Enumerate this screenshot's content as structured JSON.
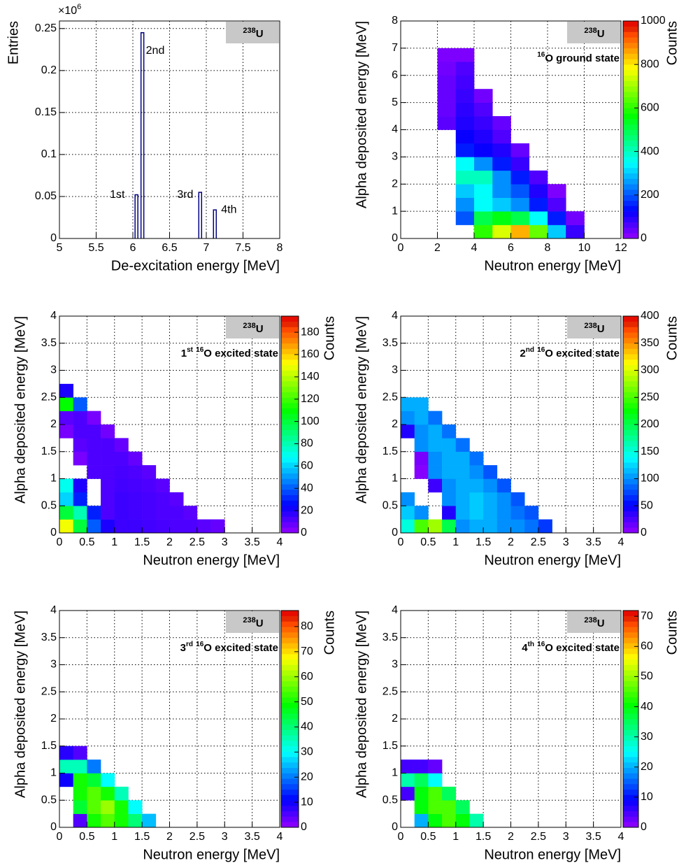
{
  "chart_data": [
    {
      "type": "spike",
      "x": [
        6.049,
        6.13,
        6.917,
        7.117
      ],
      "values": [
        0.052,
        0.245,
        0.055,
        0.034
      ],
      "annotations": [
        "1st",
        "2nd",
        "3rd",
        "4th"
      ],
      "color": "#000080",
      "xlim": [
        5,
        8
      ],
      "xticks": [
        5,
        5.5,
        6,
        6.5,
        7,
        7.5,
        8
      ],
      "ylim": [
        0,
        0.259
      ],
      "yticks": [
        0,
        0.05,
        0.1,
        0.15,
        0.2,
        0.25
      ],
      "y_multiplier": {
        "base": "×10",
        "exponent": "6"
      },
      "xlabel": "De-excitation energy [MeV]",
      "ylabel": "Entries",
      "tag": {
        "sup": "238",
        "text": "U"
      },
      "grid": true
    },
    {
      "type": "heatmap",
      "colormap": "rainbow",
      "grid": true,
      "xbins": [
        0,
        1,
        2,
        3,
        4,
        5,
        6,
        7,
        8,
        9,
        10,
        11,
        12
      ],
      "ybins": [
        0,
        0.5,
        1,
        1.5,
        2,
        2.5,
        3,
        3.5,
        4,
        4.5,
        5,
        5.5,
        6,
        6.5,
        7,
        7.5,
        8
      ],
      "z": [
        [
          0,
          0,
          0,
          0,
          600,
          750,
          850,
          650,
          300,
          80,
          0,
          0
        ],
        [
          0,
          0,
          0,
          200,
          500,
          550,
          500,
          350,
          150,
          30,
          0,
          0
        ],
        [
          0,
          0,
          0,
          250,
          350,
          300,
          250,
          150,
          60,
          0,
          0,
          0
        ],
        [
          0,
          0,
          0,
          300,
          350,
          250,
          200,
          100,
          20,
          0,
          0,
          0
        ],
        [
          0,
          0,
          0,
          400,
          400,
          250,
          150,
          60,
          0,
          0,
          0,
          0
        ],
        [
          0,
          0,
          0,
          350,
          250,
          150,
          80,
          0,
          0,
          0,
          0,
          0
        ],
        [
          0,
          0,
          0,
          150,
          120,
          100,
          40,
          0,
          0,
          0,
          0,
          0
        ],
        [
          0,
          0,
          0,
          120,
          100,
          60,
          0,
          0,
          0,
          0,
          0,
          0
        ],
        [
          0,
          0,
          50,
          100,
          80,
          40,
          0,
          0,
          0,
          0,
          0,
          0
        ],
        [
          0,
          0,
          40,
          90,
          60,
          0,
          0,
          0,
          0,
          0,
          0,
          0
        ],
        [
          0,
          0,
          40,
          80,
          30,
          0,
          0,
          0,
          0,
          0,
          0,
          0
        ],
        [
          0,
          0,
          40,
          70,
          0,
          0,
          0,
          0,
          0,
          0,
          0,
          0
        ],
        [
          0,
          0,
          30,
          60,
          0,
          0,
          0,
          0,
          0,
          0,
          0,
          0
        ],
        [
          0,
          0,
          20,
          20,
          0,
          0,
          0,
          0,
          0,
          0,
          0,
          0
        ],
        [
          0,
          0,
          0,
          0,
          0,
          0,
          0,
          0,
          0,
          0,
          0,
          0
        ],
        [
          0,
          0,
          0,
          0,
          0,
          0,
          0,
          0,
          0,
          0,
          0,
          0
        ]
      ],
      "xlim": [
        0,
        12
      ],
      "xticks": [
        0,
        2,
        4,
        6,
        8,
        10,
        12
      ],
      "ylim": [
        0,
        8
      ],
      "yticks": [
        0,
        1,
        2,
        3,
        4,
        5,
        6,
        7,
        8
      ],
      "zlim": [
        0,
        1000
      ],
      "zticks": [
        0,
        200,
        400,
        600,
        800,
        1000
      ],
      "xlabel": "Neutron energy [MeV]",
      "ylabel": "Alpha deposited energy [MeV]",
      "zlabel": "Counts",
      "tag": {
        "sup": "238",
        "text": "U"
      },
      "label_parts": [
        {
          "sup": "16"
        },
        {
          "text": "O ground state"
        }
      ]
    },
    {
      "type": "heatmap",
      "colormap": "rainbow",
      "grid": true,
      "xbins": [
        0,
        0.25,
        0.5,
        0.75,
        1,
        1.25,
        1.5,
        1.75,
        2,
        2.25,
        2.5,
        2.75,
        3
      ],
      "ybins": [
        0,
        0.25,
        0.5,
        0.75,
        1,
        1.25,
        1.5,
        1.75,
        2,
        2.25,
        2.5,
        2.75
      ],
      "z": [
        [
          150,
          100,
          40,
          20,
          15,
          15,
          14,
          13,
          12,
          12,
          10,
          8
        ],
        [
          100,
          80,
          30,
          12,
          15,
          14,
          13,
          12,
          12,
          10,
          0,
          0
        ],
        [
          60,
          30,
          0,
          12,
          15,
          14,
          13,
          12,
          10,
          0,
          0,
          0
        ],
        [
          70,
          20,
          0,
          12,
          14,
          13,
          12,
          10,
          0,
          0,
          0,
          0
        ],
        [
          0,
          0,
          12,
          12,
          13,
          12,
          10,
          0,
          0,
          0,
          0,
          0
        ],
        [
          0,
          5,
          12,
          12,
          12,
          8,
          0,
          0,
          0,
          0,
          0,
          0
        ],
        [
          0,
          10,
          12,
          12,
          8,
          0,
          0,
          0,
          0,
          0,
          0,
          0
        ],
        [
          5,
          12,
          12,
          6,
          0,
          0,
          0,
          0,
          0,
          0,
          0,
          0
        ],
        [
          10,
          12,
          5,
          0,
          0,
          0,
          0,
          0,
          0,
          0,
          0,
          0
        ],
        [
          110,
          40,
          0,
          0,
          0,
          0,
          0,
          0,
          0,
          0,
          0,
          0
        ],
        [
          20,
          0,
          0,
          0,
          0,
          0,
          0,
          0,
          0,
          0,
          0,
          0
        ]
      ],
      "xlim": [
        0,
        4
      ],
      "xticks": [
        0,
        0.5,
        1,
        1.5,
        2,
        2.5,
        3,
        3.5,
        4
      ],
      "ylim": [
        0,
        4
      ],
      "yticks": [
        0,
        0.5,
        1,
        1.5,
        2,
        2.5,
        3,
        3.5,
        4
      ],
      "zlim": [
        0,
        194.5
      ],
      "zticks": [
        0,
        20,
        40,
        60,
        80,
        100,
        120,
        140,
        160,
        180
      ],
      "xlabel": "Neutron energy [MeV]",
      "ylabel": "Alpha deposited energy [MeV]",
      "zlabel": "Counts",
      "tag": {
        "sup": "238",
        "text": "U"
      },
      "label_parts": [
        {
          "text": "1"
        },
        {
          "sup": "st"
        },
        {
          "text": " "
        },
        {
          "sup": "16"
        },
        {
          "text": "O excited state"
        }
      ]
    },
    {
      "type": "heatmap",
      "colormap": "rainbow",
      "grid": true,
      "xbins": [
        0,
        0.25,
        0.5,
        0.75,
        1,
        1.25,
        1.5,
        1.75,
        2,
        2.25,
        2.5,
        2.75,
        3
      ],
      "ybins": [
        0,
        0.25,
        0.5,
        0.75,
        1,
        1.25,
        1.5,
        1.75,
        2,
        2.25,
        2.5
      ],
      "z": [
        [
          150,
          250,
          280,
          200,
          100,
          110,
          110,
          100,
          100,
          90,
          70,
          0
        ],
        [
          120,
          100,
          0,
          40,
          110,
          120,
          110,
          100,
          90,
          80,
          0,
          0
        ],
        [
          100,
          0,
          0,
          100,
          110,
          120,
          110,
          100,
          80,
          0,
          0,
          0
        ],
        [
          0,
          0,
          30,
          100,
          110,
          110,
          100,
          80,
          0,
          0,
          0,
          0
        ],
        [
          0,
          5,
          100,
          110,
          110,
          100,
          80,
          0,
          0,
          0,
          0,
          0
        ],
        [
          0,
          10,
          100,
          110,
          110,
          90,
          0,
          0,
          0,
          0,
          0,
          0
        ],
        [
          0,
          100,
          110,
          110,
          90,
          0,
          0,
          0,
          0,
          0,
          0,
          0
        ],
        [
          40,
          100,
          110,
          90,
          0,
          0,
          0,
          0,
          0,
          0,
          0,
          0
        ],
        [
          100,
          110,
          90,
          0,
          0,
          0,
          0,
          0,
          0,
          0,
          0,
          0
        ],
        [
          110,
          110,
          0,
          0,
          0,
          0,
          0,
          0,
          0,
          0,
          0,
          0
        ]
      ],
      "xlim": [
        0,
        4
      ],
      "xticks": [
        0,
        0.5,
        1,
        1.5,
        2,
        2.5,
        3,
        3.5,
        4
      ],
      "ylim": [
        0,
        4
      ],
      "yticks": [
        0,
        0.5,
        1,
        1.5,
        2,
        2.5,
        3,
        3.5,
        4
      ],
      "zlim": [
        0,
        400
      ],
      "zticks": [
        0,
        50,
        100,
        150,
        200,
        250,
        300,
        350,
        400
      ],
      "xlabel": "Neutron energy [MeV]",
      "ylabel": "Alpha deposited energy [MeV]",
      "zlabel": "Counts",
      "tag": {
        "sup": "238",
        "text": "U"
      },
      "label_parts": [
        {
          "text": "2"
        },
        {
          "sup": "nd"
        },
        {
          "text": " "
        },
        {
          "sup": "16"
        },
        {
          "text": "O excited state"
        }
      ]
    },
    {
      "type": "heatmap",
      "colormap": "rainbow",
      "grid": true,
      "xbins": [
        0,
        0.25,
        0.5,
        0.75,
        1,
        1.25,
        1.5,
        1.75,
        2
      ],
      "ybins": [
        0,
        0.25,
        0.5,
        0.75,
        1,
        1.25,
        1.5
      ],
      "z": [
        [
          0,
          5,
          50,
          55,
          50,
          40,
          25,
          0
        ],
        [
          0,
          45,
          55,
          60,
          50,
          30,
          0,
          0
        ],
        [
          0,
          50,
          55,
          50,
          35,
          0,
          0,
          0
        ],
        [
          10,
          50,
          45,
          30,
          0,
          0,
          0,
          0
        ],
        [
          35,
          35,
          20,
          0,
          0,
          0,
          0,
          0
        ],
        [
          8,
          5,
          0,
          0,
          0,
          0,
          0,
          0
        ]
      ],
      "xlim": [
        0,
        4
      ],
      "xticks": [
        0,
        0.5,
        1,
        1.5,
        2,
        2.5,
        3,
        3.5,
        4
      ],
      "ylim": [
        0,
        4
      ],
      "yticks": [
        0,
        0.5,
        1,
        1.5,
        2,
        2.5,
        3,
        3.5,
        4
      ],
      "zlim": [
        0,
        86.4
      ],
      "zticks": [
        0,
        10,
        20,
        30,
        40,
        50,
        60,
        70,
        80
      ],
      "xlabel": "Neutron energy [MeV]",
      "ylabel": "Alpha deposited energy [MeV]",
      "zlabel": "Counts",
      "tag": {
        "sup": "238",
        "text": "U"
      },
      "label_parts": [
        {
          "text": "3"
        },
        {
          "sup": "rd"
        },
        {
          "text": " "
        },
        {
          "sup": "16"
        },
        {
          "text": "O excited state"
        }
      ]
    },
    {
      "type": "heatmap",
      "colormap": "rainbow",
      "grid": true,
      "xbins": [
        0,
        0.25,
        0.5,
        0.75,
        1,
        1.25,
        1.5,
        1.75
      ],
      "ybins": [
        0,
        0.25,
        0.5,
        0.75,
        1,
        1.25
      ],
      "z": [
        [
          0,
          20,
          40,
          45,
          40,
          30,
          0
        ],
        [
          0,
          40,
          45,
          45,
          35,
          0,
          0
        ],
        [
          5,
          40,
          45,
          35,
          0,
          0,
          0
        ],
        [
          30,
          35,
          25,
          0,
          0,
          0,
          0
        ],
        [
          5,
          5,
          3,
          0,
          0,
          0,
          0
        ]
      ],
      "xlim": [
        0,
        4
      ],
      "xticks": [
        0,
        0.5,
        1,
        1.5,
        2,
        2.5,
        3,
        3.5,
        4
      ],
      "ylim": [
        0,
        4
      ],
      "yticks": [
        0,
        0.5,
        1,
        1.5,
        2,
        2.5,
        3,
        3.5,
        4
      ],
      "zlim": [
        0,
        71.9
      ],
      "zticks": [
        0,
        10,
        20,
        30,
        40,
        50,
        60,
        70
      ],
      "xlabel": "Neutron energy [MeV]",
      "ylabel": "Alpha deposited energy [MeV]",
      "zlabel": "Counts",
      "tag": {
        "sup": "238",
        "text": "U"
      },
      "label_parts": [
        {
          "text": "4"
        },
        {
          "sup": "th"
        },
        {
          "text": " "
        },
        {
          "sup": "16"
        },
        {
          "text": "O excited state"
        }
      ]
    }
  ]
}
